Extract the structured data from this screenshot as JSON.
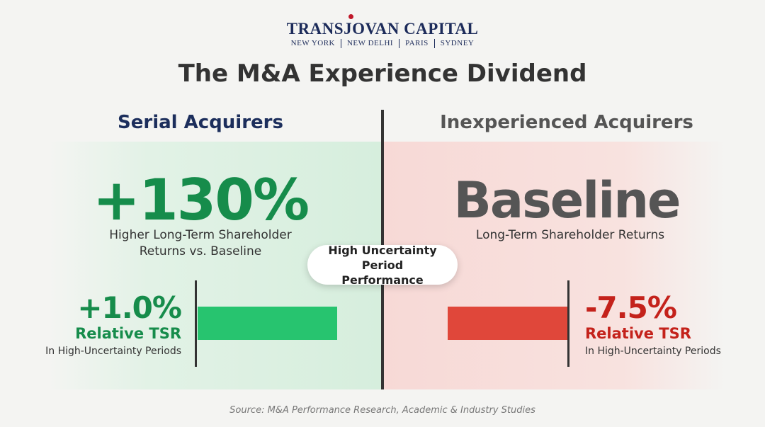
{
  "header": {
    "brand": "TRANSJOVAN CAPITAL",
    "locations": [
      "NEW YORK",
      "NEW DELHI",
      "PARIS",
      "SYDNEY"
    ],
    "title": "The M&A Experience Dividend"
  },
  "panels": [
    {
      "heading": "Serial Acquirers",
      "headline": "+130%",
      "headline_caption": "Higher Long-Term Shareholder Returns vs. Baseline",
      "metric": "+1.0%",
      "metric_label": "Relative TSR",
      "metric_caption": "In High-Uncertainty Periods"
    },
    {
      "heading": "Inexperienced Acquirers",
      "headline": "Baseline",
      "headline_caption": "Long-Term Shareholder Returns",
      "metric": "-7.5%",
      "metric_label": "Relative TSR",
      "metric_caption": "In High-Uncertainty Periods"
    }
  ],
  "center_badge": "High Uncertainty Period Performance",
  "source": "Source: M&A Performance Research, Academic & Industry Studies"
}
